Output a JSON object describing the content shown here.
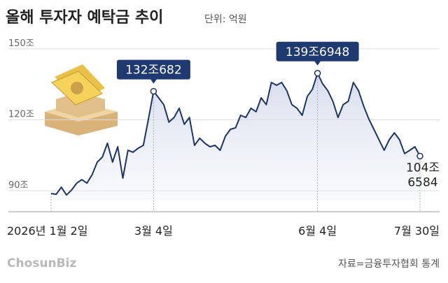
{
  "chart_data": {
    "type": "line",
    "title": "올해 투자자 예탁금 추이",
    "subtitle": "단위: 억원",
    "source": "자료=금융투자협회 통계",
    "logo": "ChosunBiz",
    "categories": [
      "2026년 1월 2일",
      null,
      null,
      null,
      null,
      null,
      null,
      null,
      null,
      null,
      null,
      null,
      null,
      null,
      null,
      null,
      null,
      null,
      null,
      null,
      "3월 4일",
      null,
      null,
      null,
      null,
      null,
      null,
      null,
      null,
      null,
      null,
      null,
      null,
      null,
      null,
      null,
      null,
      null,
      null,
      null,
      null,
      null,
      null,
      null,
      null,
      null,
      null,
      null,
      null,
      null,
      null,
      null,
      "6월 4일",
      null,
      null,
      null,
      null,
      null,
      null,
      null,
      null,
      null,
      null,
      null,
      null,
      null,
      null,
      null,
      null,
      null,
      null,
      null,
      "7월 30일"
    ],
    "series": [
      {
        "name": "투자자 예탁금",
        "color": "#1e3465",
        "values": [
          88.8,
          88.5,
          91.5,
          88.2,
          90.3,
          93.2,
          94.7,
          93.2,
          96.8,
          102.1,
          104.2,
          110.1,
          102.1,
          108.6,
          95.3,
          107.1,
          106.3,
          108,
          109.2,
          120.4,
          132.0682,
          129.3,
          126.4,
          119,
          121,
          124.9,
          118.1,
          121,
          109.2,
          112.2,
          110.1,
          108.6,
          109.2,
          107.1,
          113,
          116,
          116.6,
          121.9,
          121,
          124.9,
          123.4,
          129.3,
          126.4,
          135.8,
          134.6,
          135.8,
          132.3,
          126.4,
          124.9,
          121.9,
          129.9,
          132.9,
          139.6948,
          135.2,
          132.3,
          127.8,
          121,
          126.4,
          127.8,
          135.8,
          132.3,
          125.8,
          120.4,
          116,
          111.6,
          107.1,
          111.6,
          114.5,
          111.6,
          105.7,
          107.1,
          108.6,
          104.6584
        ],
        "value_labels": [
          null,
          null,
          null,
          null,
          null,
          null,
          null,
          null,
          null,
          null,
          null,
          null,
          null,
          null,
          null,
          null,
          null,
          null,
          null,
          null,
          "132조682",
          null,
          null,
          null,
          null,
          null,
          null,
          null,
          null,
          null,
          null,
          null,
          null,
          null,
          null,
          null,
          null,
          null,
          null,
          null,
          null,
          null,
          null,
          null,
          null,
          null,
          null,
          null,
          null,
          null,
          null,
          null,
          "139조6948",
          null,
          null,
          null,
          null,
          null,
          null,
          null,
          null,
          null,
          null,
          null,
          null,
          null,
          null,
          null,
          null,
          null,
          null,
          null,
          "104조\n6584"
        ]
      }
    ],
    "ylim": [
      86,
      155
    ],
    "yticks": [
      {
        "value": 90,
        "label": "90조"
      },
      {
        "value": 120,
        "label": "120조"
      },
      {
        "value": 150,
        "label": "150조"
      }
    ],
    "grid": true
  }
}
